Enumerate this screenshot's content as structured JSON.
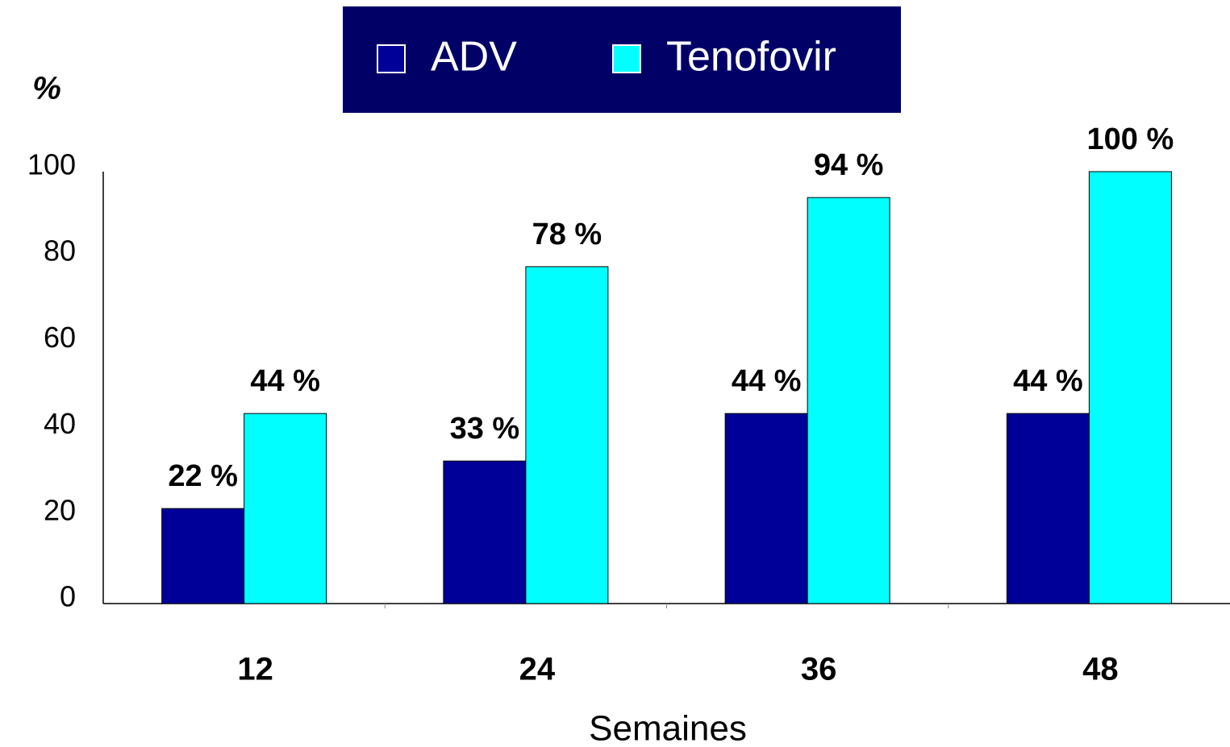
{
  "chart_data": {
    "type": "bar",
    "y_label": "%",
    "x_label": "Semaines",
    "categories": [
      "12",
      "24",
      "36",
      "48"
    ],
    "series": [
      {
        "name": "ADV",
        "color": "#000099",
        "values": [
          22,
          33,
          44,
          44
        ],
        "value_labels": [
          "22 %",
          "33 %",
          "44 %",
          "44 %"
        ]
      },
      {
        "name": "Tenofovir",
        "color": "#00ffff",
        "values": [
          44,
          78,
          94,
          100
        ],
        "value_labels": [
          "44 %",
          "78 %",
          "94 %",
          "100 %"
        ]
      }
    ],
    "ylim": [
      0,
      100
    ],
    "yticks": [
      0,
      20,
      40,
      60,
      80,
      100
    ],
    "grid": false,
    "legend": "top"
  }
}
